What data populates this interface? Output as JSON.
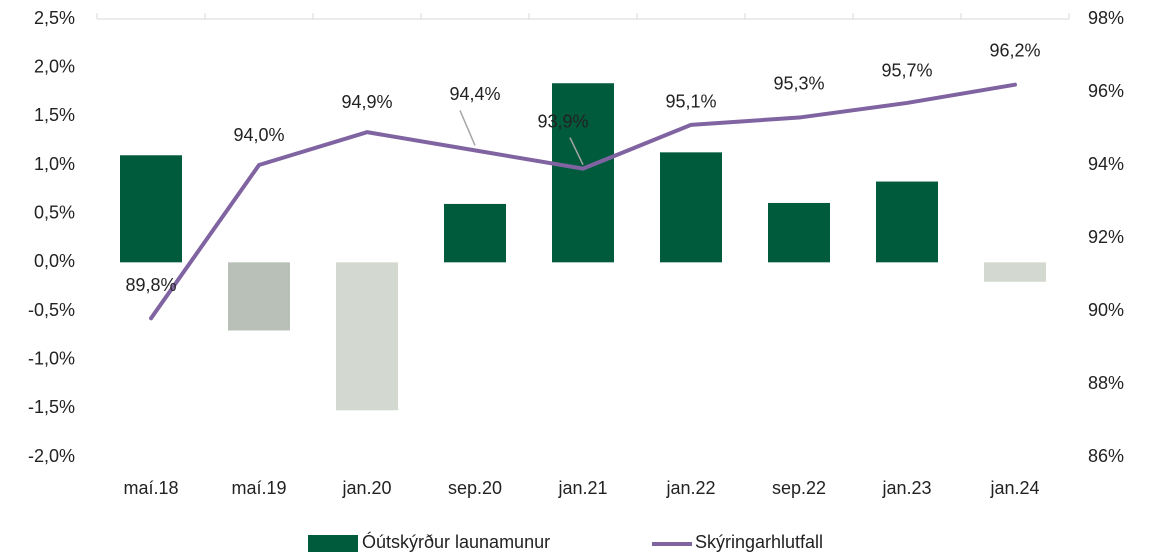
{
  "chart_data": {
    "type": "bar_line",
    "categories": [
      "maí.18",
      "maí.19",
      "jan.20",
      "sep.20",
      "jan.21",
      "jan.22",
      "sep.22",
      "jan.23",
      "jan.24"
    ],
    "series": [
      {
        "name": "Óútskýrður launamunur",
        "type": "bar",
        "color": "#005a3c",
        "colors": [
          "#005a3c",
          "#b9c0b8",
          "#d3d8d1",
          "#005a3c",
          "#005a3c",
          "#005a3c",
          "#005a3c",
          "#005a3c",
          "#d3d8d1"
        ],
        "values": [
          1.1,
          -0.7,
          -1.52,
          0.6,
          1.84,
          1.13,
          0.61,
          0.83,
          -0.2
        ]
      },
      {
        "name": "Skýringarhlutfall",
        "type": "line",
        "axis": "y2",
        "color": "#8064a2",
        "values": [
          89.8,
          94.0,
          94.9,
          94.4,
          93.9,
          95.1,
          95.3,
          95.7,
          96.2
        ],
        "value_labels": [
          "89,8%",
          "94,0%",
          "94,9%",
          "94,4%",
          "93,9%",
          "95,1%",
          "95,3%",
          "95,7%",
          "96,2%"
        ]
      }
    ],
    "ylim": [
      -2.0,
      2.5
    ],
    "yticks": [
      {
        "value": -2.0,
        "label": "-2,0%"
      },
      {
        "value": -1.5,
        "label": "-1,5%"
      },
      {
        "value": -1.0,
        "label": "-1,0%"
      },
      {
        "value": -0.5,
        "label": "-0,5%"
      },
      {
        "value": 0.0,
        "label": "0,0%"
      },
      {
        "value": 0.5,
        "label": "0,5%"
      },
      {
        "value": 1.0,
        "label": "1,0%"
      },
      {
        "value": 1.5,
        "label": "1,5%"
      },
      {
        "value": 2.0,
        "label": "2,0%"
      },
      {
        "value": 2.5,
        "label": "2,5%"
      }
    ],
    "y2lim": [
      86,
      98
    ],
    "y2ticks": [
      {
        "value": 86,
        "label": "86%"
      },
      {
        "value": 88,
        "label": "88%"
      },
      {
        "value": 90,
        "label": "90%"
      },
      {
        "value": 92,
        "label": "92%"
      },
      {
        "value": 94,
        "label": "94%"
      },
      {
        "value": 96,
        "label": "96%"
      },
      {
        "value": 98,
        "label": "98%"
      }
    ],
    "legend": "bottom"
  }
}
